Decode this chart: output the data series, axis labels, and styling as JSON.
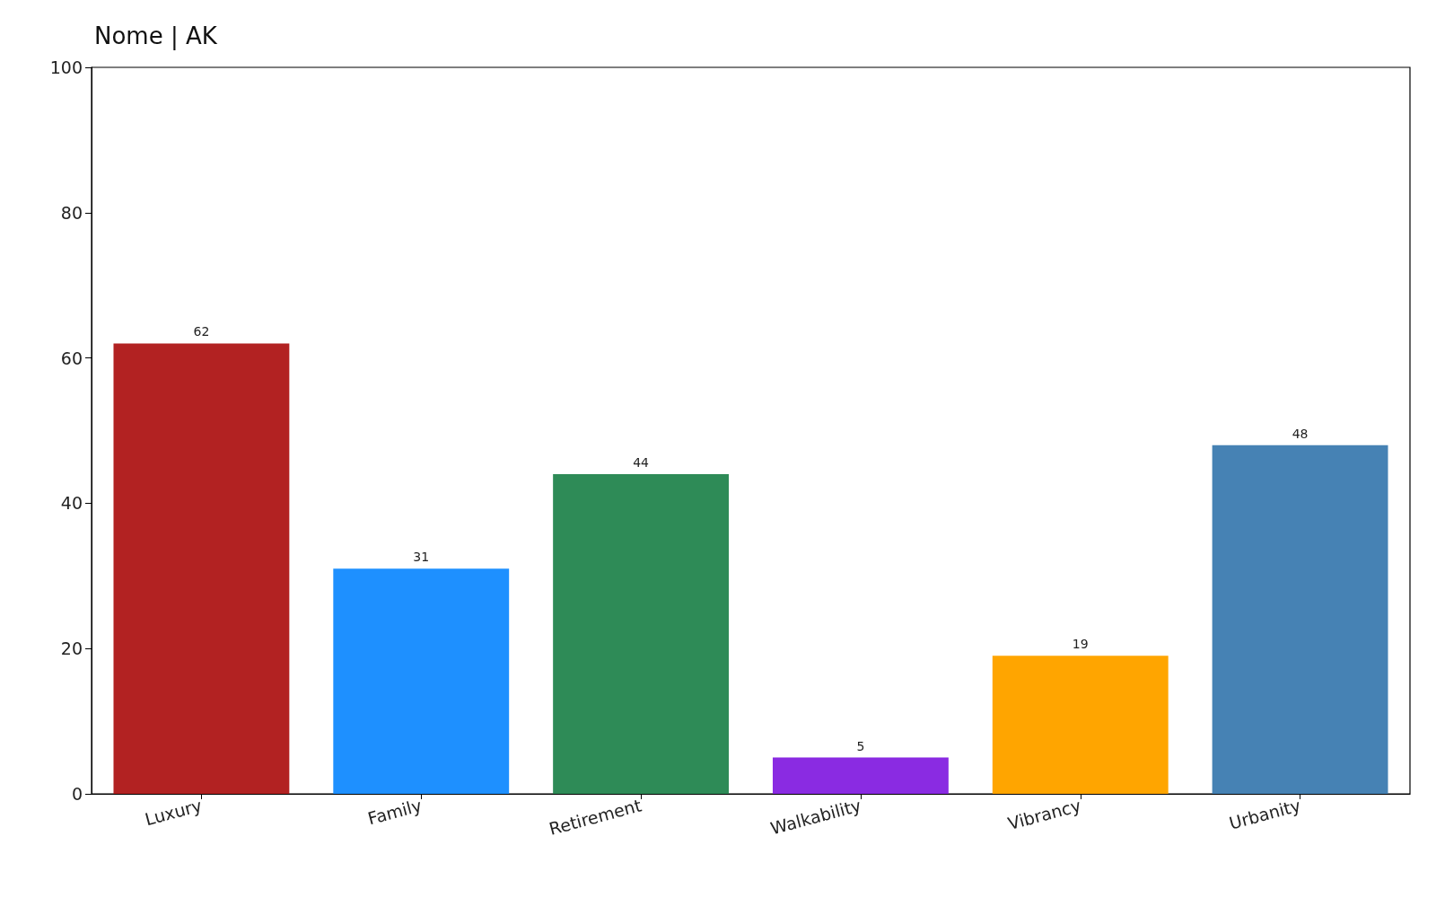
{
  "chart_data": {
    "type": "bar",
    "title": "Nome | AK",
    "categories": [
      "Luxury",
      "Family",
      "Retirement",
      "Walkability",
      "Vibrancy",
      "Urbanity"
    ],
    "values": [
      62,
      31,
      44,
      5,
      19,
      48
    ],
    "colors": [
      "#b22222",
      "#1e90ff",
      "#2e8b57",
      "#8a2be2",
      "#ffa500",
      "#4682b4"
    ],
    "ylim": [
      0,
      100
    ],
    "yticks": [
      0,
      20,
      40,
      60,
      80,
      100
    ],
    "grid": false,
    "data_labels": true
  }
}
